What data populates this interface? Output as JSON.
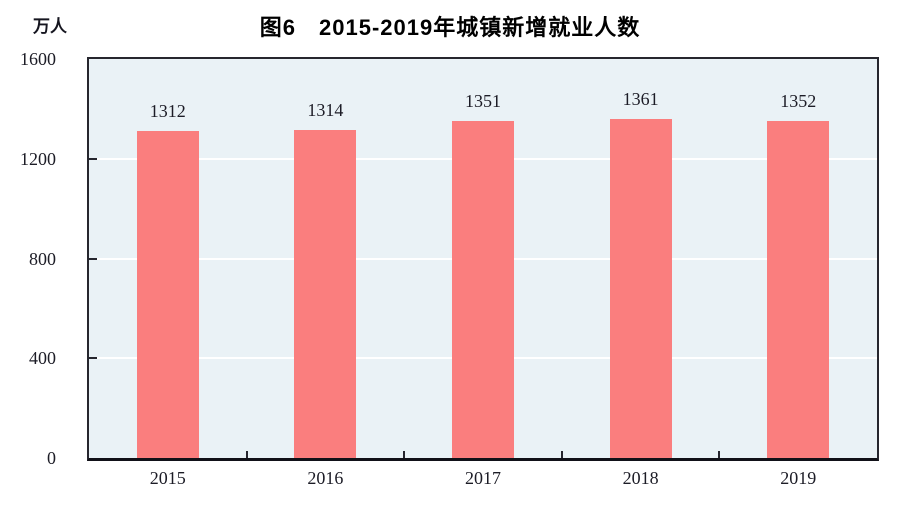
{
  "chart_data": {
    "type": "bar",
    "title": "图6　2015-2019年城镇新增就业人数",
    "unit_label": "万人",
    "categories": [
      "2015",
      "2016",
      "2017",
      "2018",
      "2019"
    ],
    "values": [
      1312,
      1314,
      1351,
      1361,
      1352
    ],
    "xlabel": "",
    "ylabel": "万人",
    "ylim": [
      0,
      1600
    ],
    "yticks": [
      0,
      400,
      800,
      1200,
      1600
    ],
    "grid": true,
    "legend": "none",
    "colors": {
      "bar": "#fa7e7e",
      "plot_background": "#eaf2f6",
      "gridline": "#ffffff",
      "axis": "#26262e",
      "text": "#1c1c26",
      "title": "#000000"
    }
  }
}
